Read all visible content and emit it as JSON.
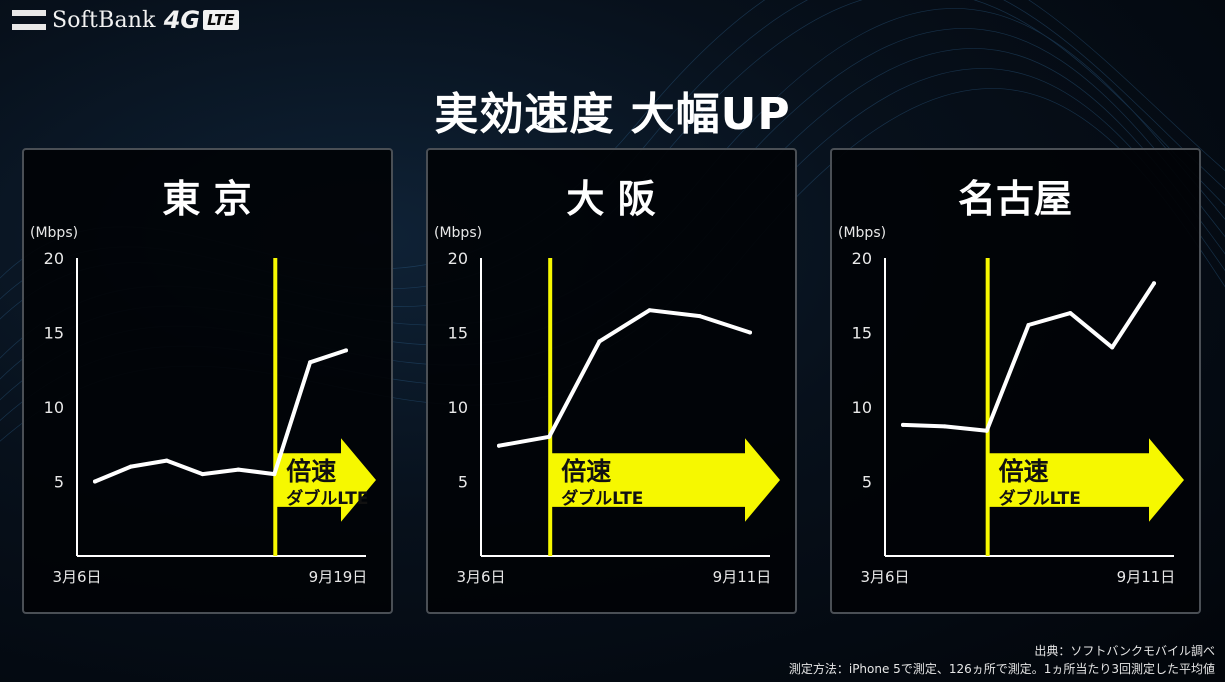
{
  "brand": {
    "name": "SoftBank",
    "network": "4G",
    "badge": "LTE"
  },
  "title": "実効速度 大幅UP",
  "chart_data": [
    {
      "type": "line",
      "title": "東 京",
      "ylabel": "(Mbps)",
      "ylim": [
        0,
        20
      ],
      "yticks": [
        5,
        10,
        15,
        20
      ],
      "x_start_label": "3月6日",
      "x_end_label": "9月19日",
      "values": [
        5.0,
        6.0,
        6.4,
        5.5,
        5.8,
        5.5,
        13.0,
        13.8
      ],
      "marker_index": 5,
      "marker_label": [
        "倍速",
        "ダブルLTE"
      ]
    },
    {
      "type": "line",
      "title": "大 阪",
      "ylabel": "(Mbps)",
      "ylim": [
        0,
        20
      ],
      "yticks": [
        5,
        10,
        15,
        20
      ],
      "x_start_label": "3月6日",
      "x_end_label": "9月11日",
      "values": [
        7.4,
        8.0,
        14.4,
        16.5,
        16.1,
        15.0
      ],
      "marker_index": 1,
      "marker_label": [
        "倍速",
        "ダブルLTE"
      ]
    },
    {
      "type": "line",
      "title": "名古屋",
      "ylabel": "(Mbps)",
      "ylim": [
        0,
        20
      ],
      "yticks": [
        5,
        10,
        15,
        20
      ],
      "x_start_label": "3月6日",
      "x_end_label": "9月11日",
      "values": [
        8.8,
        8.7,
        8.4,
        15.5,
        16.3,
        14.0,
        18.3
      ],
      "marker_index": 2,
      "marker_label": [
        "倍速",
        "ダブルLTE"
      ]
    }
  ],
  "footnotes": {
    "source": "出典：ソフトバンクモバイル調べ",
    "method": "測定方法：iPhone 5で測定、126ヵ所で測定。1ヵ所当たり3回測定した平均値"
  },
  "colors": {
    "accent": "#f6f800",
    "line": "#ffffff",
    "panel_border": "#4a4f55"
  }
}
